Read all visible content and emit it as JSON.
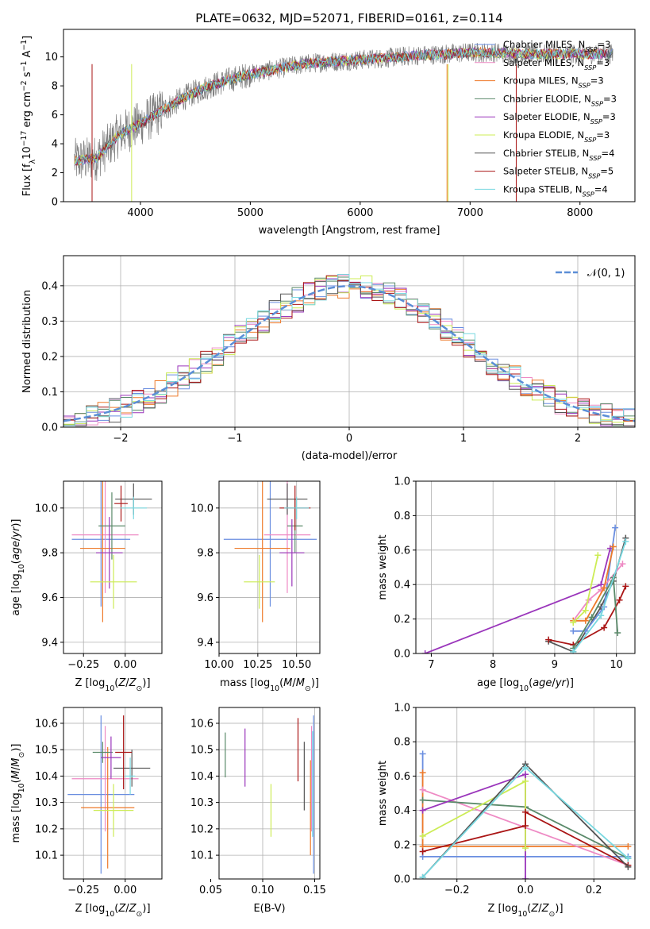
{
  "colors": {
    "chab_miles": "#6a8ee0",
    "salp_miles": "#ee8ac4",
    "krou_miles": "#ee7a2a",
    "chab_elodie": "#5a8a6a",
    "salp_elodie": "#9a35bb",
    "krou_elodie": "#ccec55",
    "chab_stelib": "#555555",
    "salp_stelib": "#aa1515",
    "krou_stelib": "#78d8e0",
    "grid": "#b0b0b0",
    "normal": "#5b8ed6",
    "spec": "#808080"
  },
  "chart_data": [
    {
      "id": "spectrum",
      "type": "line",
      "title": "PLATE=0632, MJD=52071, FIBERID=0161, z=0.114",
      "xlabel": "wavelength [Angstrom, rest frame]",
      "ylabel": "Flux [f_λ10^-17 erg cm^-2 s^-1 A^-1]",
      "xlim": [
        3300,
        8500
      ],
      "ylim": [
        0,
        11.9
      ],
      "xticks": [
        "4000",
        "5000",
        "6000",
        "7000",
        "8000"
      ],
      "yticks": [
        "0",
        "2",
        "4",
        "6",
        "8",
        "10"
      ],
      "legend_loc": "upper right",
      "legend": [
        "Chabrier MILES, N_SSP=3",
        "Salpeter MILES, N_SSP=3",
        "Kroupa MILES, N_SSP=3",
        "Chabrier ELODIE, N_SSP=3",
        "Salpeter ELODIE, N_SSP=3",
        "Kroupa ELODIE, N_SSP=3",
        "Chabrier STELIB, N_SSP=4",
        "Salpeter STELIB, N_SSP=5",
        "Kroupa STELIB, N_SSP=4"
      ],
      "data_range": [
        3400,
        8300
      ],
      "continuum": {
        "x": [
          3400,
          3600,
          3700,
          3800,
          3900,
          4000,
          4200,
          4400,
          4600,
          4800,
          5000,
          5200,
          5400,
          5600,
          5800,
          6000,
          6200,
          6500,
          6800,
          7000,
          7200,
          7500,
          7800,
          8000,
          8300
        ],
        "y": [
          2.8,
          3.0,
          3.8,
          4.6,
          5.0,
          5.4,
          6.3,
          7.2,
          7.9,
          8.4,
          8.8,
          9.1,
          9.4,
          9.6,
          9.7,
          9.8,
          9.9,
          10.1,
          10.2,
          10.3,
          10.3,
          10.2,
          10.2,
          10.2,
          10.2
        ]
      }
    },
    {
      "id": "residuals",
      "type": "histogram",
      "xlabel": "(data-model)/error",
      "ylabel": "Normed distribution",
      "xlim": [
        -2.5,
        2.5
      ],
      "ylim": [
        0,
        0.485
      ],
      "xticks": [
        "−2",
        "−1",
        "0",
        "1",
        "2"
      ],
      "yticks": [
        "0.0",
        "0.1",
        "0.2",
        "0.3",
        "0.4"
      ],
      "legend": [
        "𝒩(0, 1)"
      ],
      "legend_loc": "upper right",
      "bin_width": 0.1,
      "bin_start": -2.5
    },
    {
      "id": "age_vs_Z",
      "type": "errorbar",
      "xlabel": "Z [log10(Z/Z⊙)]",
      "ylabel": "age [log10(age/yr)]",
      "xlim": [
        -0.37,
        0.22
      ],
      "ylim": [
        9.35,
        10.12
      ],
      "xticks": [
        "−0.25",
        "0.00"
      ],
      "yticks": [
        "9.4",
        "9.6",
        "9.8",
        "10.0"
      ],
      "points": [
        {
          "m": "chab_miles",
          "x": -0.145,
          "xe": 0.175,
          "y": 9.86,
          "ye": 0.3
        },
        {
          "m": "salp_miles",
          "x": -0.12,
          "xe": 0.2,
          "y": 9.88,
          "ye": 0.26
        },
        {
          "m": "krou_miles",
          "x": -0.135,
          "xe": 0.135,
          "y": 9.82,
          "ye": 0.33
        },
        {
          "m": "chab_elodie",
          "x": -0.08,
          "xe": 0.08,
          "y": 9.92,
          "ye": 0.15
        },
        {
          "m": "salp_elodie",
          "x": -0.095,
          "xe": 0.08,
          "y": 9.8,
          "ye": 0.16
        },
        {
          "m": "krou_elodie",
          "x": -0.07,
          "xe": 0.14,
          "y": 9.67,
          "ye": 0.12
        },
        {
          "m": "chab_stelib",
          "x": 0.05,
          "xe": 0.11,
          "y": 10.04,
          "ye": 0.07
        },
        {
          "m": "salp_stelib",
          "x": -0.025,
          "xe": 0.04,
          "y": 10.02,
          "ye": 0.08
        },
        {
          "m": "krou_stelib",
          "x": 0.05,
          "xe": 0.08,
          "y": 10.0,
          "ye": 0.05
        }
      ]
    },
    {
      "id": "age_vs_mass",
      "type": "errorbar",
      "xlabel": "mass [log10(M/M⊙)]",
      "xlim": [
        10.0,
        10.65
      ],
      "ylim": [
        9.35,
        10.12
      ],
      "xticks": [
        "10.00",
        "10.25",
        "10.50"
      ],
      "yticks": [
        "9.4",
        "9.6",
        "9.8",
        "10.0"
      ],
      "points": [
        {
          "m": "chab_miles",
          "x": 10.33,
          "xe": 0.3,
          "y": 9.86,
          "ye": 0.3
        },
        {
          "m": "salp_miles",
          "x": 10.44,
          "xe": 0.15,
          "y": 9.88,
          "ye": 0.26
        },
        {
          "m": "krou_miles",
          "x": 10.28,
          "xe": 0.18,
          "y": 9.82,
          "ye": 0.33
        },
        {
          "m": "chab_elodie",
          "x": 10.49,
          "xe": 0.05,
          "y": 9.92,
          "ye": 0.12
        },
        {
          "m": "salp_elodie",
          "x": 10.47,
          "xe": 0.08,
          "y": 9.8,
          "ye": 0.15
        },
        {
          "m": "krou_elodie",
          "x": 10.26,
          "xe": 0.1,
          "y": 9.67,
          "ye": 0.12
        },
        {
          "m": "chab_stelib",
          "x": 10.44,
          "xe": 0.13,
          "y": 10.04,
          "ye": 0.07
        },
        {
          "m": "salp_stelib",
          "x": 10.49,
          "xe": 0.1,
          "y": 10.0,
          "ye": 0.1
        },
        {
          "m": "krou_stelib",
          "x": 10.5,
          "xe": 0.08,
          "y": 10.0,
          "ye": 0.05
        }
      ]
    },
    {
      "id": "weights_vs_age",
      "type": "line",
      "xlabel": "age [log10(age/yr)]",
      "ylabel": "mass weight",
      "xlim": [
        6.75,
        10.3
      ],
      "ylim": [
        0,
        1.0
      ],
      "xticks": [
        "7",
        "8",
        "9",
        "10"
      ],
      "yticks": [
        "0.0",
        "0.2",
        "0.4",
        "0.6",
        "0.8",
        "1.0"
      ],
      "series": [
        {
          "m": "salp_elodie",
          "x": [
            6.9,
            9.75,
            9.9
          ],
          "y": [
            0.0,
            0.4,
            0.61
          ]
        },
        {
          "m": "chab_stelib",
          "x": [
            8.9,
            9.3,
            9.75,
            9.95,
            10.15
          ],
          "y": [
            0.07,
            0.01,
            0.27,
            0.42,
            0.67
          ]
        },
        {
          "m": "salp_stelib",
          "x": [
            8.9,
            9.3,
            9.8,
            10.05,
            10.15
          ],
          "y": [
            0.08,
            0.05,
            0.15,
            0.31,
            0.39
          ]
        },
        {
          "m": "chab_miles",
          "x": [
            9.3,
            9.5,
            9.8,
            9.98
          ],
          "y": [
            0.13,
            0.13,
            0.27,
            0.73
          ]
        },
        {
          "m": "salp_miles",
          "x": [
            9.3,
            9.55,
            9.75,
            10.1
          ],
          "y": [
            0.19,
            0.31,
            0.37,
            0.52
          ]
        },
        {
          "m": "krou_miles",
          "x": [
            9.3,
            9.5,
            9.8,
            9.95
          ],
          "y": [
            0.19,
            0.19,
            0.38,
            0.62
          ]
        },
        {
          "m": "chab_elodie",
          "x": [
            9.3,
            9.6,
            9.95,
            10.02
          ],
          "y": [
            0.03,
            0.21,
            0.44,
            0.12
          ]
        },
        {
          "m": "krou_elodie",
          "x": [
            9.3,
            9.5,
            9.7
          ],
          "y": [
            0.18,
            0.25,
            0.57
          ]
        },
        {
          "m": "krou_stelib",
          "x": [
            9.3,
            9.75,
            10.15
          ],
          "y": [
            0.01,
            0.22,
            0.65
          ]
        }
      ]
    },
    {
      "id": "mass_vs_Z",
      "type": "errorbar",
      "xlabel": "Z [log10(Z/Z⊙)]",
      "ylabel": "mass [log10(M/M⊙)]",
      "xlim": [
        -0.37,
        0.22
      ],
      "ylim": [
        10.01,
        10.66
      ],
      "xticks": [
        "−0.25",
        "0.00"
      ],
      "yticks": [
        "10.1",
        "10.2",
        "10.3",
        "10.4",
        "10.5",
        "10.6"
      ],
      "points": [
        {
          "m": "chab_miles",
          "x": -0.145,
          "xe": 0.2,
          "y": 10.33,
          "ye": 0.3
        },
        {
          "m": "salp_miles",
          "x": -0.12,
          "xe": 0.2,
          "y": 10.39,
          "ye": 0.2
        },
        {
          "m": "krou_miles",
          "x": -0.105,
          "xe": 0.16,
          "y": 10.28,
          "ye": 0.23
        },
        {
          "m": "chab_elodie",
          "x": -0.135,
          "xe": 0.06,
          "y": 10.49,
          "ye": 0.04
        },
        {
          "m": "salp_elodie",
          "x": -0.085,
          "xe": 0.06,
          "y": 10.47,
          "ye": 0.08
        },
        {
          "m": "krou_elodie",
          "x": -0.07,
          "xe": 0.12,
          "y": 10.27,
          "ye": 0.1
        },
        {
          "m": "chab_stelib",
          "x": 0.04,
          "xe": 0.11,
          "y": 10.43,
          "ye": 0.07
        },
        {
          "m": "salp_stelib",
          "x": -0.01,
          "xe": 0.05,
          "y": 10.49,
          "ye": 0.14
        },
        {
          "m": "krou_stelib",
          "x": 0.03,
          "xe": 0.03,
          "y": 10.4,
          "ye": 0.07
        }
      ]
    },
    {
      "id": "mass_vs_EBV",
      "type": "errorbar",
      "xlabel": "E(B-V)",
      "xlim": [
        0.058,
        0.155
      ],
      "ylim": [
        10.01,
        10.66
      ],
      "xticks": [
        "0.05",
        "0.10",
        "0.15"
      ],
      "yticks": [
        "10.1",
        "10.2",
        "10.3",
        "10.4",
        "10.5",
        "10.6"
      ],
      "points": [
        {
          "m": "chab_elodie",
          "x": 0.064,
          "y": 10.48,
          "ye": 0.085
        },
        {
          "m": "salp_elodie",
          "x": 0.083,
          "y": 10.47,
          "ye": 0.11
        },
        {
          "m": "krou_elodie",
          "x": 0.108,
          "y": 10.27,
          "ye": 0.1
        },
        {
          "m": "salp_stelib",
          "x": 0.134,
          "y": 10.5,
          "ye": 0.12
        },
        {
          "m": "chab_stelib",
          "x": 0.14,
          "y": 10.4,
          "ye": 0.13
        },
        {
          "m": "salp_miles",
          "x": 0.147,
          "y": 10.39,
          "ye": 0.2
        },
        {
          "m": "chab_miles",
          "x": 0.149,
          "y": 10.33,
          "ye": 0.3
        },
        {
          "m": "krou_miles",
          "x": 0.146,
          "y": 10.28,
          "ye": 0.18
        },
        {
          "m": "krou_stelib",
          "x": 0.148,
          "y": 10.37,
          "ye": 0.2
        }
      ]
    },
    {
      "id": "weights_vs_Z",
      "type": "line",
      "xlabel": "Z [log10(Z/Z⊙)]",
      "ylabel": "mass weight",
      "xlim": [
        -0.32,
        0.32
      ],
      "ylim": [
        0,
        1.0
      ],
      "xticks": [
        "−0.2",
        "0.0",
        "0.2"
      ],
      "yticks": [
        "0.0",
        "0.2",
        "0.4",
        "0.6",
        "0.8",
        "1.0"
      ],
      "series": [
        {
          "m": "chab_miles",
          "x": [
            -0.3,
            -0.3,
            0.0,
            0.3
          ],
          "y": [
            0.73,
            0.13,
            0.13,
            0.13
          ]
        },
        {
          "m": "krou_miles",
          "x": [
            -0.3,
            -0.3,
            0.0,
            0.3
          ],
          "y": [
            0.62,
            0.19,
            0.19,
            0.19
          ]
        },
        {
          "m": "salp_miles",
          "x": [
            -0.3,
            0.3
          ],
          "y": [
            0.52,
            0.08
          ]
        },
        {
          "m": "chab_elodie",
          "x": [
            -0.3,
            0.0,
            0.3
          ],
          "y": [
            0.46,
            0.42,
            0.12
          ]
        },
        {
          "m": "salp_elodie",
          "x": [
            -0.3,
            0.0,
            0.0
          ],
          "y": [
            0.4,
            0.61,
            0.0
          ]
        },
        {
          "m": "krou_elodie",
          "x": [
            -0.3,
            0.0,
            0.0
          ],
          "y": [
            0.25,
            0.57,
            0.18
          ]
        },
        {
          "m": "salp_stelib",
          "x": [
            -0.3,
            0.0,
            0.0,
            0.3
          ],
          "y": [
            0.16,
            0.31,
            0.39,
            0.08
          ]
        },
        {
          "m": "chab_stelib",
          "x": [
            -0.3,
            0.0,
            0.3
          ],
          "y": [
            0.01,
            0.67,
            0.07
          ]
        },
        {
          "m": "krou_stelib",
          "x": [
            -0.3,
            0.0,
            0.3
          ],
          "y": [
            0.01,
            0.65,
            0.12
          ]
        }
      ]
    }
  ]
}
